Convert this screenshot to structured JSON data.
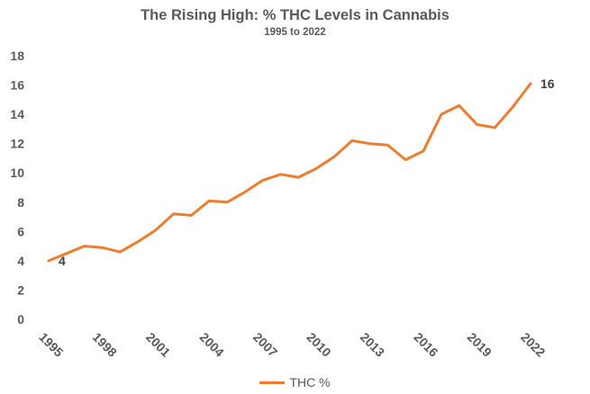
{
  "chart_data": {
    "type": "line",
    "title": "The Rising High: % THC Levels in Cannabis",
    "subtitle": "1995 to 2022",
    "xlabel": "",
    "ylabel": "",
    "ylim": [
      0,
      18
    ],
    "yticks": [
      "0",
      "2",
      "4",
      "6",
      "8",
      "10",
      "12",
      "14",
      "16",
      "18"
    ],
    "xticks": [
      "1995",
      "1998",
      "2001",
      "2004",
      "2007",
      "2010",
      "2013",
      "2016",
      "2019",
      "2022"
    ],
    "grid": false,
    "legend_position": "bottom",
    "series": [
      {
        "name": "THC %",
        "color": "#ED7D31",
        "x": [
          1995,
          1996,
          1997,
          1998,
          1999,
          2000,
          2001,
          2002,
          2003,
          2004,
          2005,
          2006,
          2007,
          2008,
          2009,
          2010,
          2011,
          2012,
          2013,
          2014,
          2015,
          2016,
          2017,
          2018,
          2019,
          2020,
          2021,
          2022
        ],
        "values": [
          4.0,
          4.5,
          5.0,
          4.9,
          4.6,
          5.3,
          6.1,
          7.2,
          7.1,
          8.1,
          8.0,
          8.7,
          9.5,
          9.9,
          9.7,
          10.3,
          11.1,
          12.2,
          12.0,
          11.9,
          10.9,
          11.5,
          14.0,
          14.6,
          13.3,
          13.1,
          14.5,
          16.1
        ]
      }
    ],
    "data_labels": [
      {
        "text": "4",
        "index": 0
      },
      {
        "text": "16",
        "index": 27
      }
    ]
  }
}
